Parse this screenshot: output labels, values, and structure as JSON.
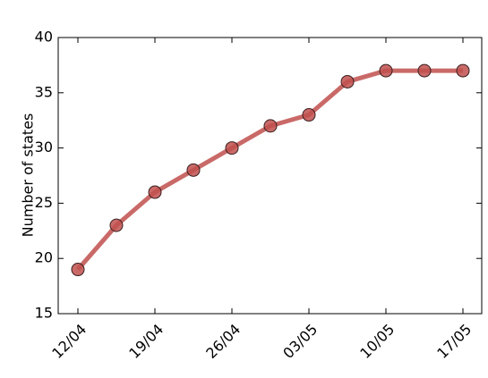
{
  "chart_data": {
    "type": "line",
    "y_label": "Number of states",
    "categories": [
      "12/04",
      null,
      "19/04",
      null,
      "26/04",
      null,
      "03/05",
      null,
      "10/05",
      null,
      "17/05"
    ],
    "series": [
      {
        "name": "states",
        "color": "#c0504d",
        "values": [
          19,
          23,
          26,
          28,
          30,
          32,
          33,
          36,
          37,
          37,
          37
        ]
      }
    ],
    "ylim": [
      15,
      40
    ],
    "yticks": [
      15,
      20,
      25,
      30,
      35,
      40
    ],
    "grid": false
  }
}
